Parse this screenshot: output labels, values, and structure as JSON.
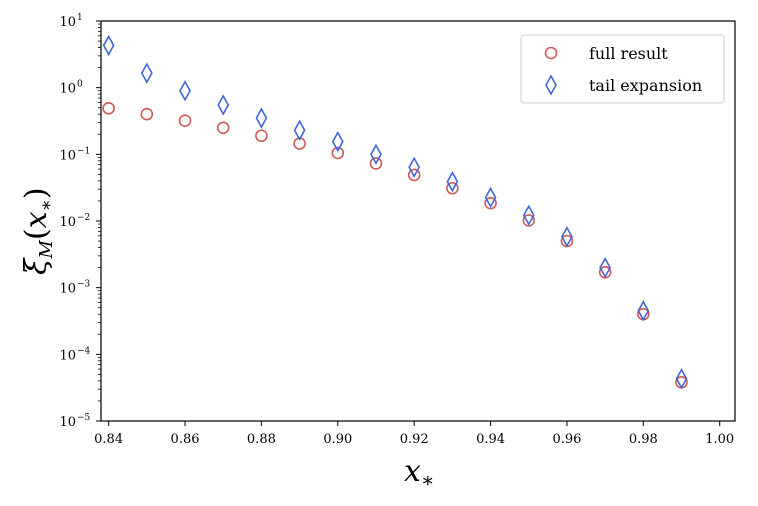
{
  "chart_data": {
    "type": "scatter",
    "xlabel_main": "x",
    "xlabel_sub": "∗",
    "ylabel_main": "ξ",
    "ylabel_sub": "M",
    "ylabel_arg_open": "(",
    "ylabel_arg_main": "x",
    "ylabel_arg_sub": "∗",
    "ylabel_arg_close": ")",
    "xlim": [
      0.838,
      1.004
    ],
    "ylim_log10": [
      -5,
      1
    ],
    "yscale": "log",
    "x_ticks": [
      "0.84",
      "0.86",
      "0.88",
      "0.90",
      "0.92",
      "0.94",
      "0.96",
      "0.98",
      "1.00"
    ],
    "x_tick_values": [
      0.84,
      0.86,
      0.88,
      0.9,
      0.92,
      0.94,
      0.96,
      0.98,
      1.0
    ],
    "y_tick_base": "10",
    "y_tick_exponents": [
      "1",
      "0",
      "−1",
      "−2",
      "−3",
      "−4",
      "−5"
    ],
    "y_tick_values": [
      1,
      0,
      -1,
      -2,
      -3,
      -4,
      -5
    ],
    "legend_position": "top-right",
    "series": [
      {
        "name": "full result",
        "marker": "circle",
        "color": "#d05a5a",
        "x": [
          0.84,
          0.85,
          0.86,
          0.87,
          0.88,
          0.89,
          0.9,
          0.91,
          0.92,
          0.93,
          0.94,
          0.95,
          0.96,
          0.97,
          0.98,
          0.99
        ],
        "y": [
          0.49,
          0.4,
          0.32,
          0.25,
          0.19,
          0.145,
          0.105,
          0.073,
          0.049,
          0.031,
          0.0185,
          0.0102,
          0.005,
          0.0017,
          0.0004,
          3.8e-05
        ]
      },
      {
        "name": "tail expansion",
        "marker": "diamond",
        "color": "#4066d8",
        "x": [
          0.84,
          0.85,
          0.86,
          0.87,
          0.88,
          0.89,
          0.9,
          0.91,
          0.92,
          0.93,
          0.94,
          0.95,
          0.96,
          0.97,
          0.98,
          0.99
        ],
        "y": [
          4.3,
          1.65,
          0.9,
          0.55,
          0.35,
          0.23,
          0.155,
          0.1,
          0.064,
          0.039,
          0.0225,
          0.0122,
          0.0058,
          0.002,
          0.00045,
          4.3e-05
        ]
      }
    ]
  }
}
